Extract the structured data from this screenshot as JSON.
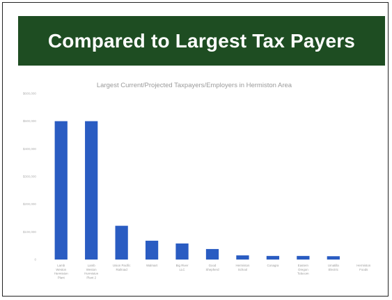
{
  "slide": {
    "title": "Compared to Largest Tax Payers"
  },
  "colors": {
    "banner": "#1e4d22",
    "bar": "#2a5cc2"
  },
  "chart_data": {
    "type": "bar",
    "title": "Largest Current/Projected Taxpayers/Employers in Hermiston Area",
    "xlabel": "",
    "ylabel": "",
    "ylim": [
      0,
      600000
    ],
    "yticks": [
      {
        "value": 0,
        "label": "0"
      },
      {
        "value": 100000,
        "label": "$100,000"
      },
      {
        "value": 200000,
        "label": "$200,000"
      },
      {
        "value": 300000,
        "label": "$300,000"
      },
      {
        "value": 400000,
        "label": "$400,000"
      },
      {
        "value": 500000,
        "label": "$500,000"
      },
      {
        "value": 600000,
        "label": "$600,000"
      }
    ],
    "categories": [
      [
        "Lamb",
        "Weston",
        "Hermiston",
        "Plant"
      ],
      [
        "Lamb",
        "Weston",
        "Hermiston",
        "Plant 2"
      ],
      [
        "Union Pacific",
        "Railroad"
      ],
      [
        "Walmart"
      ],
      [
        "Big River",
        "LLC"
      ],
      [
        "Good",
        "Shepherd"
      ],
      [
        "Hermiston",
        "School"
      ],
      [
        "Conagra"
      ],
      [
        "Eastern",
        "Oregon",
        "Telecom"
      ],
      [
        "Umatilla",
        "Electric"
      ],
      [
        "Hermiston",
        "Foods"
      ]
    ],
    "values": [
      500000,
      500000,
      122000,
      68000,
      58000,
      38000,
      15000,
      13000,
      13000,
      12000,
      0
    ],
    "grid": false,
    "legend": "none"
  }
}
